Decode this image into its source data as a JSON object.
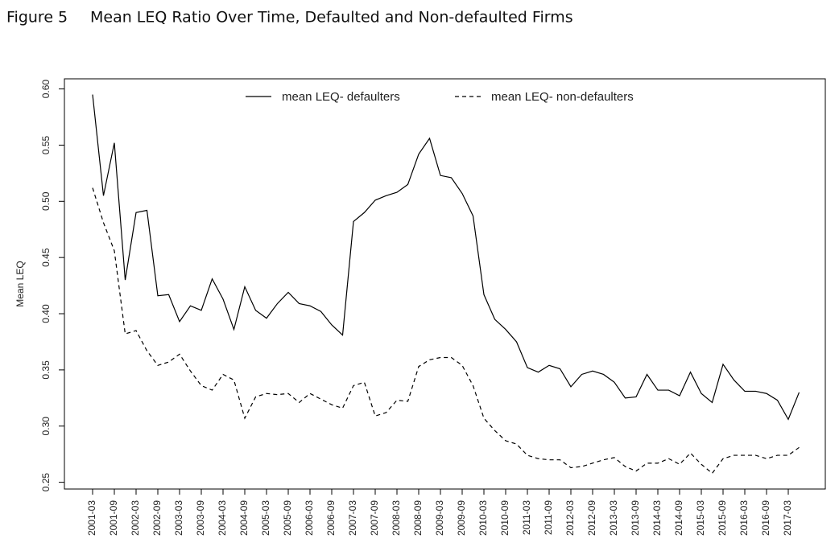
{
  "chart_data": {
    "type": "line",
    "figure_label": "Figure 5",
    "title": "Mean LEQ Ratio Over Time, Defaulted and Non-defaulted Firms",
    "y_label": "Mean LEQ",
    "categories": [
      "2001-03",
      null,
      "2001-09",
      null,
      "2002-03",
      null,
      "2002-09",
      null,
      "2003-03",
      null,
      "2003-09",
      null,
      "2004-03",
      null,
      "2004-09",
      null,
      "2005-03",
      null,
      "2005-09",
      null,
      "2006-03",
      null,
      "2006-09",
      null,
      "2007-03",
      null,
      "2007-09",
      null,
      "2008-03",
      null,
      "2008-09",
      null,
      "2009-03",
      null,
      "2009-09",
      null,
      "2010-03",
      null,
      "2010-09",
      null,
      "2011-03",
      null,
      "2011-09",
      null,
      "2012-03",
      null,
      "2012-09",
      null,
      "2013-03",
      null,
      "2013-09",
      null,
      "2014-03",
      null,
      "2014-09",
      null,
      "2015-03",
      null,
      "2015-09",
      null,
      "2016-03",
      null,
      "2016-09",
      null,
      "2017-03",
      null
    ],
    "series": [
      {
        "name": "mean LEQ- defaulters",
        "color": "#000000",
        "line_style": "solid",
        "values": [
          0.595,
          0.505,
          0.552,
          0.43,
          0.49,
          0.492,
          0.416,
          0.417,
          0.393,
          0.407,
          0.403,
          0.431,
          0.413,
          0.386,
          0.424,
          0.403,
          0.396,
          0.409,
          0.419,
          0.409,
          0.407,
          0.402,
          0.39,
          0.381,
          0.482,
          0.49,
          0.501,
          0.505,
          0.508,
          0.515,
          0.542,
          0.556,
          0.523,
          0.521,
          0.507,
          0.487,
          0.417,
          0.395,
          0.386,
          0.375,
          0.352,
          0.348,
          0.354,
          0.351,
          0.335,
          0.346,
          0.349,
          0.346,
          0.339,
          0.325,
          0.326,
          0.346,
          0.332,
          0.332,
          0.327,
          0.348,
          0.329,
          0.321,
          0.355,
          0.341,
          0.331,
          0.331,
          0.329,
          0.323,
          0.306,
          0.33
        ]
      },
      {
        "name": "mean LEQ- non-defaulters",
        "color": "#000000",
        "line_style": "dashed",
        "values": [
          0.512,
          0.481,
          0.456,
          0.382,
          0.385,
          0.367,
          0.354,
          0.357,
          0.364,
          0.349,
          0.336,
          0.332,
          0.346,
          0.341,
          0.307,
          0.326,
          0.329,
          0.328,
          0.329,
          0.321,
          0.329,
          0.324,
          0.319,
          0.316,
          0.336,
          0.339,
          0.309,
          0.312,
          0.323,
          0.322,
          0.353,
          0.359,
          0.361,
          0.361,
          0.354,
          0.336,
          0.307,
          0.296,
          0.287,
          0.284,
          0.274,
          0.271,
          0.27,
          0.27,
          0.263,
          0.264,
          0.267,
          0.27,
          0.272,
          0.264,
          0.26,
          0.267,
          0.267,
          0.271,
          0.266,
          0.276,
          0.266,
          0.258,
          0.271,
          0.274,
          0.274,
          0.274,
          0.271,
          0.274,
          0.274,
          0.281
        ]
      }
    ],
    "ylim": [
      0.244,
      0.609
    ],
    "yticks": [
      0.25,
      {
        "value": 0.3,
        "label": "0.30"
      },
      0.35,
      {
        "value": 0.4,
        "label": "0.40"
      },
      0.45,
      {
        "value": 0.5,
        "label": "0.50"
      },
      0.55,
      {
        "value": 0.6,
        "label": "0.60"
      }
    ],
    "legend": "top",
    "grid": false
  }
}
